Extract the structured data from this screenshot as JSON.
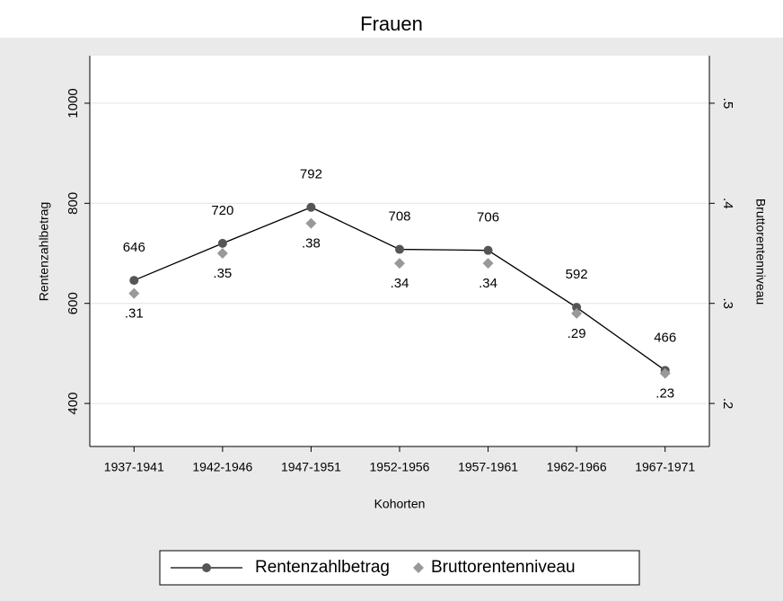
{
  "chart_data": {
    "type": "line",
    "title": "Frauen",
    "x_label": "Kohorten",
    "y_label": "Rentenzahlbetrag",
    "y2_label": "Bruttorentenniveau",
    "categories": [
      "1937-1941",
      "1942-1946",
      "1947-1951",
      "1952-1956",
      "1957-1961",
      "1962-1966",
      "1967-1971"
    ],
    "series": [
      {
        "name": "Rentenzahlbetrag",
        "color": "#555555",
        "line_color": "#000000",
        "marker": "circle",
        "values": [
          646,
          720,
          792,
          708,
          706,
          592,
          466
        ]
      },
      {
        "name": "Bruttorentenniveau",
        "color": "#999999",
        "marker": "diamond",
        "axis": "y2",
        "values": [
          0.31,
          0.35,
          0.38,
          0.34,
          0.34,
          0.29,
          0.23
        ],
        "value_labels": [
          ".31",
          ".35",
          ".38",
          ".34",
          ".34",
          ".29",
          ".23"
        ]
      }
    ],
    "ylim": [
      314,
      1095
    ],
    "yticks": [
      400,
      600,
      800,
      1000
    ],
    "y2lim": [
      0.157,
      0.5475
    ],
    "y2ticks": [
      {
        "value": 0.2,
        "label": ".2"
      },
      {
        "value": 0.3,
        "label": ".3"
      },
      {
        "value": 0.4,
        "label": ".4"
      },
      {
        "value": 0.5,
        "label": ".5"
      }
    ],
    "grid": true,
    "legend": "bottom"
  }
}
